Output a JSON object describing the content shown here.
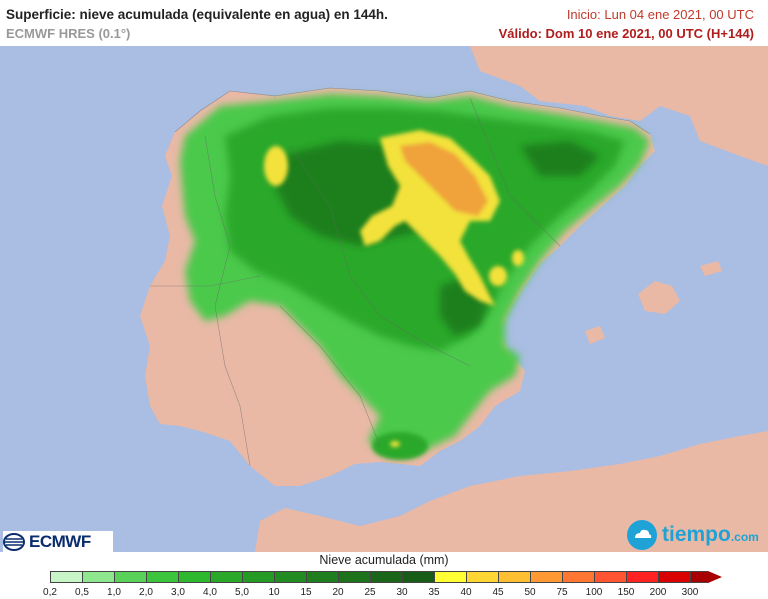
{
  "header": {
    "title": "Superficie: nieve acumulada (equivalente en agua) en 144h.",
    "subtitle": "ECMWF HRES (0.1°)",
    "init": "Inicio: Lun 04 ene 2021, 00 UTC",
    "valid": "Válido: Dom 10 ene 2021, 00 UTC (H+144)"
  },
  "logos": {
    "ecmwf": "ECMWF",
    "tiempo": "tiempo",
    "tiempo_suffix": ".com"
  },
  "legend": {
    "title": "Nieve acumulada (mm)",
    "labels": [
      "0,2",
      "0,5",
      "1,0",
      "2,0",
      "3,0",
      "4,0",
      "5,0",
      "10",
      "15",
      "20",
      "25",
      "30",
      "35",
      "40",
      "45",
      "50",
      "75",
      "100",
      "150",
      "200",
      "300"
    ],
    "colors": [
      "#c8f5c8",
      "#8ee68e",
      "#5ad25a",
      "#3cc43c",
      "#2eb82e",
      "#2aa82a",
      "#259a25",
      "#228b22",
      "#1f7f1f",
      "#1c731c",
      "#196619",
      "#175c17",
      "#ffff33",
      "#ffd633",
      "#ffbf33",
      "#ff9933",
      "#ff7733",
      "#ff5533",
      "#ff2222",
      "#d90000",
      "#a80000"
    ]
  },
  "map_colors": {
    "sea": "#aabde3",
    "land": "#e9b9a6",
    "snow_low": "#4cc94c",
    "snow_mid": "#2ba82b",
    "snow_high": "#1d7f1d",
    "peak_yellow": "#f3e23a",
    "peak_orange": "#f0a23a"
  }
}
